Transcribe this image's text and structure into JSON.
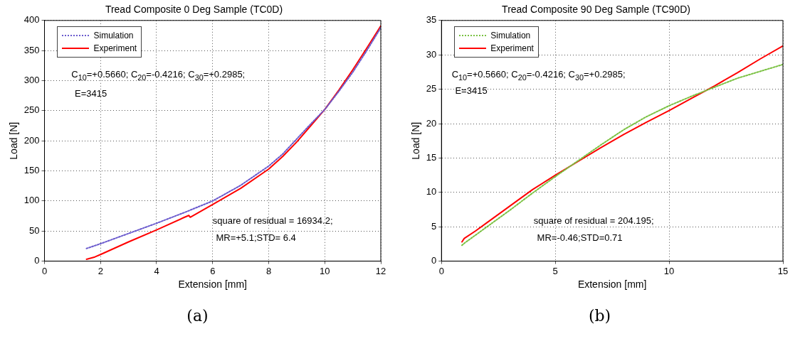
{
  "chart_data": [
    {
      "type": "line",
      "title": "Tread Composite 0 Deg Sample (TC0D)",
      "xlabel": "Extension [mm]",
      "ylabel": "Load [N]",
      "xlim": [
        0,
        12
      ],
      "xticks": [
        0,
        2,
        4,
        6,
        8,
        10,
        12
      ],
      "ylim": [
        0,
        400
      ],
      "yticks": [
        0,
        50,
        100,
        150,
        200,
        250,
        300,
        350,
        400
      ],
      "grid": true,
      "legend": "top left",
      "marker": "none",
      "annotations": [
        "C$_{10}$=+0.5660; C$_{20}$=-0.4216; C$_{30}$=+0.2985;",
        "E=3415",
        "square of residual = 16934.2;",
        "MR=+5.1;STD= 6.4",
        "(a)"
      ],
      "series": [
        {
          "name": "Simulation",
          "color": "#6a5acd",
          "line_style": "dotted",
          "x": [
            1.5,
            2,
            3,
            4,
            5,
            6,
            7,
            8,
            8.5,
            9,
            9.5,
            10,
            10.5,
            11,
            11.5,
            12
          ],
          "values": [
            21,
            29,
            46,
            63,
            81,
            100,
            126,
            158,
            178,
            203,
            228,
            252,
            282,
            314,
            350,
            388
          ]
        },
        {
          "name": "Experiment",
          "color": "#ff0000",
          "line_style": "solid",
          "x": [
            1.5,
            1.8,
            2,
            3,
            4,
            5,
            5.15,
            5.2,
            6,
            7,
            8,
            8.5,
            9,
            9.5,
            10,
            10.5,
            11,
            11.5,
            12
          ],
          "values": [
            3,
            7,
            11,
            32,
            52,
            73,
            76,
            73,
            94,
            121,
            153,
            174,
            198,
            225,
            252,
            284,
            318,
            354,
            391
          ]
        }
      ]
    },
    {
      "type": "line",
      "title": "Tread Composite 90 Deg Sample (TC90D)",
      "xlabel": "Extension [mm]",
      "ylabel": "Load [N]",
      "xlim": [
        0,
        15
      ],
      "xticks": [
        0,
        5,
        10,
        15
      ],
      "ylim": [
        0,
        35
      ],
      "yticks": [
        0,
        5,
        10,
        15,
        20,
        25,
        30,
        35
      ],
      "grid": true,
      "legend": "top left",
      "marker": "none",
      "annotations": [
        "C$_{10}$=+0.5660; C$_{20}$=-0.4216; C$_{30}$=+0.2985;",
        "E=3415",
        "square of residual = 204.195;",
        "MR=-0.46;STD=0.71",
        "(b)"
      ],
      "series": [
        {
          "name": "Simulation",
          "color": "#7ac142",
          "line_style": "dotted",
          "x": [
            0.9,
            1,
            2,
            3,
            4,
            5,
            6,
            7,
            8,
            9,
            10,
            11,
            12,
            13,
            14,
            15
          ],
          "values": [
            2.3,
            2.6,
            5.0,
            7.4,
            9.9,
            12.3,
            14.6,
            16.9,
            19.1,
            21.0,
            22.6,
            24.0,
            25.3,
            26.6,
            27.6,
            28.6
          ]
        },
        {
          "name": "Experiment",
          "color": "#ff0000",
          "line_style": "solid",
          "x": [
            0.9,
            1,
            1.5,
            2,
            3,
            4,
            5,
            6,
            7,
            8,
            9,
            10,
            11,
            12,
            13,
            14,
            15
          ],
          "values": [
            2.8,
            3.3,
            4.4,
            5.6,
            8.0,
            10.4,
            12.5,
            14.5,
            16.5,
            18.4,
            20.2,
            21.9,
            23.7,
            25.5,
            27.4,
            29.4,
            31.3
          ]
        }
      ]
    }
  ]
}
